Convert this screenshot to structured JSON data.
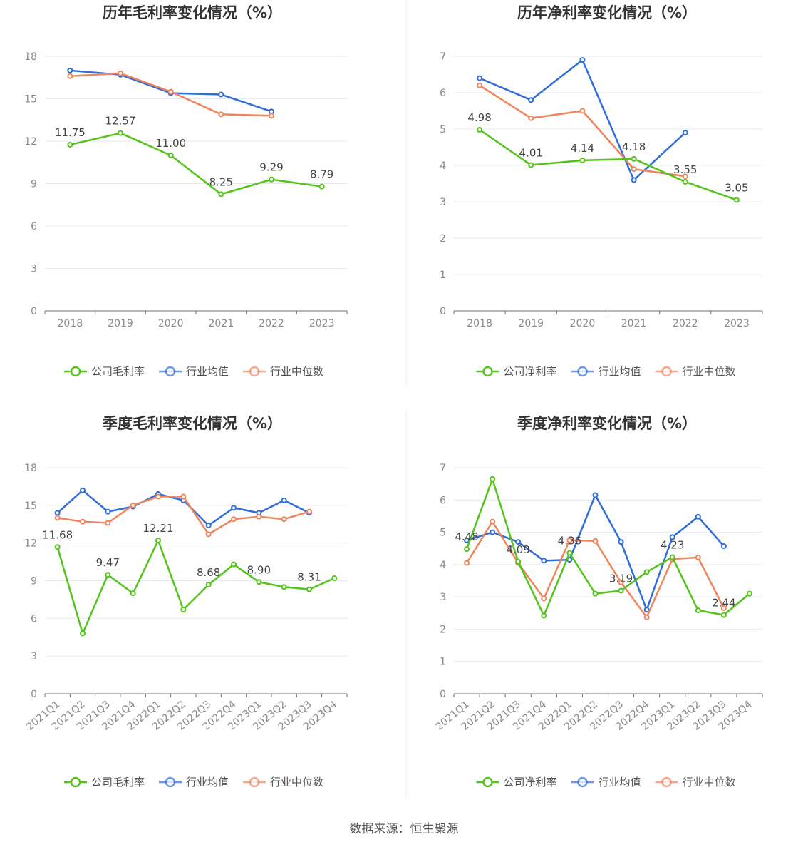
{
  "source": "数据来源：恒生聚源",
  "colors": {
    "company": "#52c41a",
    "average": "#2f6ddb",
    "median": "#f0845c"
  },
  "chart_data": [
    {
      "type": "line",
      "title": "历年毛利率变化情况（%）",
      "categories": [
        "2018",
        "2019",
        "2020",
        "2021",
        "2022",
        "2023"
      ],
      "ylim": [
        0,
        18
      ],
      "yticks": [
        0,
        3,
        6,
        9,
        12,
        15,
        18
      ],
      "grid": true,
      "legend_position": "bottom",
      "series": [
        {
          "name": "公司毛利率",
          "role": "company",
          "values": [
            11.75,
            12.57,
            11.0,
            8.25,
            9.29,
            8.79
          ],
          "labels": [
            "11.75",
            "12.57",
            "11.00",
            "8.25",
            "9.29",
            "8.79"
          ]
        },
        {
          "name": "行业均值",
          "role": "average",
          "values": [
            17.0,
            16.7,
            15.4,
            15.3,
            14.1,
            null
          ]
        },
        {
          "name": "行业中位数",
          "role": "median",
          "values": [
            16.6,
            16.8,
            15.5,
            13.9,
            13.8,
            null
          ]
        }
      ]
    },
    {
      "type": "line",
      "title": "历年净利率变化情况（%）",
      "categories": [
        "2018",
        "2019",
        "2020",
        "2021",
        "2022",
        "2023"
      ],
      "ylim": [
        0,
        7
      ],
      "yticks": [
        0,
        1,
        2,
        3,
        4,
        5,
        6,
        7
      ],
      "grid": true,
      "legend_position": "bottom",
      "series": [
        {
          "name": "公司净利率",
          "role": "company",
          "values": [
            4.98,
            4.01,
            4.14,
            4.18,
            3.55,
            3.05
          ],
          "labels": [
            "4.98",
            "4.01",
            "4.14",
            "4.18",
            "3.55",
            "3.05"
          ]
        },
        {
          "name": "行业均值",
          "role": "average",
          "values": [
            6.4,
            5.8,
            6.9,
            3.6,
            4.9,
            null
          ]
        },
        {
          "name": "行业中位数",
          "role": "median",
          "values": [
            6.2,
            5.3,
            5.5,
            3.9,
            3.7,
            null
          ]
        }
      ]
    },
    {
      "type": "line",
      "title": "季度毛利率变化情况（%）",
      "categories": [
        "2021Q1",
        "2021Q2",
        "2021Q3",
        "2021Q4",
        "2022Q1",
        "2022Q2",
        "2022Q3",
        "2022Q4",
        "2023Q1",
        "2023Q2",
        "2023Q3",
        "2023Q4"
      ],
      "ylim": [
        0,
        18
      ],
      "yticks": [
        0,
        3,
        6,
        9,
        12,
        15,
        18
      ],
      "grid": true,
      "legend_position": "bottom",
      "series": [
        {
          "name": "公司毛利率",
          "role": "company",
          "values": [
            11.68,
            4.8,
            9.47,
            8.0,
            12.21,
            6.7,
            8.68,
            10.3,
            8.9,
            8.5,
            8.31,
            9.2
          ],
          "labels": [
            "11.68",
            "",
            "9.47",
            "",
            "12.21",
            "",
            "8.68",
            "",
            "8.90",
            "",
            "8.31",
            ""
          ]
        },
        {
          "name": "行业均值",
          "role": "average",
          "values": [
            14.4,
            16.2,
            14.5,
            14.9,
            15.9,
            15.4,
            13.4,
            14.8,
            14.4,
            15.4,
            14.4,
            null
          ]
        },
        {
          "name": "行业中位数",
          "role": "median",
          "values": [
            14.0,
            13.7,
            13.6,
            15.0,
            15.7,
            15.7,
            12.7,
            13.9,
            14.1,
            13.9,
            14.5,
            null
          ]
        }
      ]
    },
    {
      "type": "line",
      "title": "季度净利率变化情况（%）",
      "categories": [
        "2021Q1",
        "2021Q2",
        "2021Q3",
        "2021Q4",
        "2022Q1",
        "2022Q2",
        "2022Q3",
        "2022Q4",
        "2023Q1",
        "2023Q2",
        "2023Q3",
        "2023Q4"
      ],
      "ylim": [
        0,
        7
      ],
      "yticks": [
        0,
        1,
        2,
        3,
        4,
        5,
        6,
        7
      ],
      "grid": true,
      "legend_position": "bottom",
      "series": [
        {
          "name": "公司净利率",
          "role": "company",
          "values": [
            4.48,
            6.65,
            4.09,
            2.42,
            4.36,
            3.1,
            3.19,
            3.77,
            4.23,
            2.58,
            2.44,
            3.1
          ],
          "labels": [
            "4.48",
            "",
            "4.09",
            "",
            "4.36",
            "",
            "3.19",
            "",
            "4.23",
            "",
            "2.44",
            ""
          ]
        },
        {
          "name": "行业均值",
          "role": "average",
          "values": [
            4.75,
            5.0,
            4.7,
            4.12,
            4.15,
            6.15,
            4.7,
            2.6,
            4.85,
            5.48,
            4.57,
            null
          ]
        },
        {
          "name": "行业中位数",
          "role": "median",
          "values": [
            4.05,
            5.33,
            4.05,
            2.95,
            4.75,
            4.73,
            3.45,
            2.37,
            4.17,
            4.22,
            2.65,
            null
          ]
        }
      ]
    }
  ]
}
